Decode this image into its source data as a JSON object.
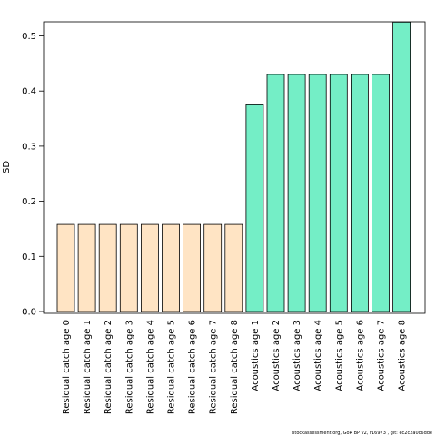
{
  "chart_data": {
    "type": "bar",
    "ylabel": "SD",
    "xlabel": "",
    "ylim": [
      0,
      0.525
    ],
    "yticks": [
      0.0,
      0.1,
      0.2,
      0.3,
      0.4,
      0.5
    ],
    "ytick_labels": [
      "0.0",
      "0.1",
      "0.2",
      "0.3",
      "0.4",
      "0.5"
    ],
    "grid": false,
    "categories": [
      "Residual catch age 0",
      "Residual catch age 1",
      "Residual catch age 2",
      "Residual catch age 3",
      "Residual catch age 4",
      "Residual catch age 5",
      "Residual catch age 6",
      "Residual catch age 7",
      "Residual catch age 8",
      "Acoustics age 1",
      "Acoustics age 2",
      "Acoustics age 3",
      "Acoustics age 4",
      "Acoustics age 5",
      "Acoustics age 6",
      "Acoustics age 7",
      "Acoustics age 8"
    ],
    "values": [
      0.158,
      0.158,
      0.158,
      0.158,
      0.158,
      0.158,
      0.158,
      0.158,
      0.158,
      0.375,
      0.43,
      0.43,
      0.43,
      0.43,
      0.43,
      0.43,
      0.525
    ],
    "bar_colors": [
      "#ffe4c4",
      "#ffe4c4",
      "#ffe4c4",
      "#ffe4c4",
      "#ffe4c4",
      "#ffe4c4",
      "#ffe4c4",
      "#ffe4c4",
      "#ffe4c4",
      "#74eec6",
      "#74eec6",
      "#74eec6",
      "#74eec6",
      "#74eec6",
      "#74eec6",
      "#74eec6",
      "#74eec6"
    ],
    "bar_edge_color": "#000000"
  },
  "footer": {
    "text": "stockassessment.org, GoR BP v2, r16973 , git: ec2c2a0c6dde"
  }
}
